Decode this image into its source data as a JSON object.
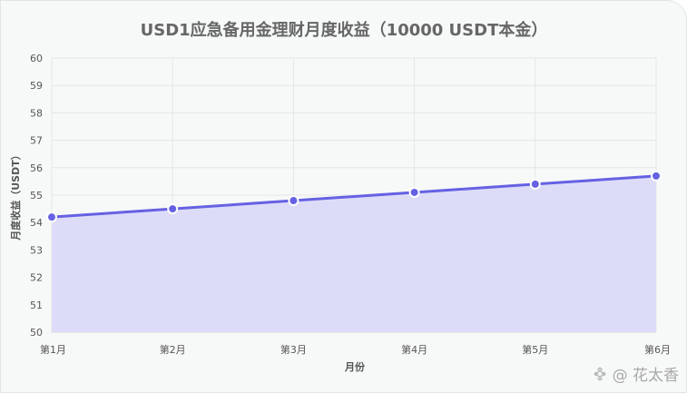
{
  "chart_data": {
    "type": "area",
    "title": "USD1应急备用金理财月度收益（10000 USDT本金）",
    "xlabel": "月份",
    "ylabel": "月度收益（USDT）",
    "categories": [
      "第1月",
      "第2月",
      "第3月",
      "第4月",
      "第5月",
      "第6月"
    ],
    "series": [
      {
        "values": [
          54.2,
          54.5,
          54.8,
          55.1,
          55.4,
          55.7
        ]
      }
    ],
    "ylim": [
      50,
      60
    ],
    "yticks": [
      50,
      51,
      52,
      53,
      54,
      55,
      56,
      57,
      58,
      59,
      60
    ],
    "grid": true,
    "line_color": "#6661e3",
    "fill_color": "#dcdcf8",
    "grid_color": "#e3e6e5"
  },
  "watermark": {
    "text": "@ 花太香",
    "icon": "binance-logo-icon"
  }
}
